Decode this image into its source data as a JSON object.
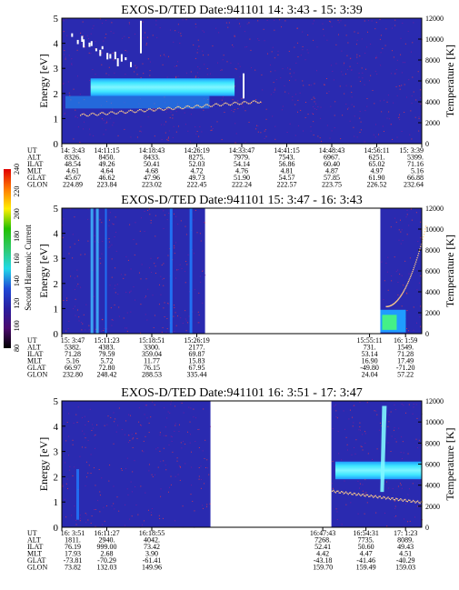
{
  "colorbar": {
    "label": "Second Harmonic Current",
    "ticks": [
      "80",
      "100",
      "120",
      "140",
      "160",
      "180",
      "200",
      "220",
      "240"
    ],
    "stops": [
      "#000000",
      "#4b0a6e",
      "#2a1ea0",
      "#1f49d6",
      "#22d9e8",
      "#2fc96a",
      "#22c000",
      "#ffee00",
      "#ff7a00",
      "#e00000"
    ]
  },
  "colors": {
    "background": "#2a2ab0",
    "band_cyan": "#3fe6ff",
    "band_light": "#7ff6ff",
    "band_mid": "#1f9cff",
    "noise": "#ff3a3a",
    "white": "#ffffff"
  },
  "chart_data": [
    {
      "type": "heatmap",
      "title": "EXOS-D/TED   Date:941101  14: 3:43 - 15: 3:39",
      "ylabel": "Energy [eV]",
      "y2label": "Temperature [K]",
      "ylim": [
        0,
        5
      ],
      "y2lim": [
        0,
        12000
      ],
      "yticks": [
        "0",
        "1",
        "2",
        "3",
        "4",
        "5"
      ],
      "y2ticks": [
        "0",
        "2000",
        "4000",
        "6000",
        "8000",
        "10000",
        "12000"
      ],
      "data_spans": [
        [
          0,
          1
        ]
      ],
      "band": {
        "x": [
          0.08,
          0.48
        ],
        "y": [
          1.9,
          2.6
        ]
      },
      "rows": [
        {
          "label": "UT",
          "values": [
            "14: 3:43",
            "14:11:15",
            "14:18:43",
            "14:26:19",
            "14:33:47",
            "14:41:15",
            "14:48:43",
            "14:56:11",
            "15: 3:39"
          ]
        },
        {
          "label": "ALT",
          "values": [
            "8326.",
            "8450.",
            "8433.",
            "8275.",
            "7979.",
            "7543.",
            "6967.",
            "6251.",
            "5399."
          ]
        },
        {
          "label": "ILAT",
          "values": [
            "48.54",
            "49.26",
            "50.41",
            "52.03",
            "54.14",
            "56.86",
            "60.40",
            "65.02",
            "71.16"
          ]
        },
        {
          "label": "MLT",
          "values": [
            "4.61",
            "4.64",
            "4.68",
            "4.72",
            "4.76",
            "4.81",
            "4.87",
            "4.97",
            "5.16"
          ]
        },
        {
          "label": "GLAT",
          "values": [
            "45.67",
            "46.62",
            "47.96",
            "49.73",
            "51.90",
            "54.57",
            "57.85",
            "61.90",
            "66.88"
          ]
        },
        {
          "label": "GLON",
          "values": [
            "224.89",
            "223.84",
            "223.02",
            "222.45",
            "222.24",
            "222.57",
            "223.75",
            "226.52",
            "232.64"
          ]
        }
      ],
      "row_positions": [
        0.0,
        0.125,
        0.25,
        0.375,
        0.5,
        0.625,
        0.75,
        0.875,
        1.0
      ]
    },
    {
      "type": "heatmap",
      "title": "EXOS-D/TED   Date:941101  15: 3:47 - 16: 3:43",
      "ylabel": "Energy [eV]",
      "y2label": "Temperature [K]",
      "ylim": [
        0,
        5
      ],
      "y2lim": [
        0,
        12000
      ],
      "yticks": [
        "0",
        "1",
        "2",
        "3",
        "4",
        "5"
      ],
      "y2ticks": [
        "0",
        "2000",
        "4000",
        "6000",
        "8000",
        "10000",
        "12000"
      ],
      "data_spans": [
        [
          0,
          0.398
        ],
        [
          0.885,
          1
        ]
      ],
      "band": null,
      "rows": [
        {
          "label": "UT",
          "values": [
            "15: 3:47",
            "15:11:23",
            "15:18:51",
            "15:26:19",
            "15:55:11",
            "16: 1:59"
          ]
        },
        {
          "label": "ALT",
          "values": [
            "5382.",
            "4383.",
            "3300.",
            "2177.",
            "731.",
            "1549."
          ]
        },
        {
          "label": "ILAT",
          "values": [
            "71.28",
            "79.59",
            "359.04",
            "69.87",
            "53.14",
            "71.28"
          ]
        },
        {
          "label": "MLT",
          "values": [
            "5.16",
            "5.72",
            "11.77",
            "15.83",
            "16.90",
            "17.49"
          ]
        },
        {
          "label": "GLAT",
          "values": [
            "66.97",
            "72.80",
            "76.15",
            "67.95",
            "-49.80",
            "-71.20"
          ]
        },
        {
          "label": "GLON",
          "values": [
            "232.80",
            "248.42",
            "288.53",
            "335.44",
            "24.04",
            "57.22"
          ]
        }
      ],
      "row_positions": [
        0.0,
        0.125,
        0.25,
        0.375,
        0.855,
        0.955
      ]
    },
    {
      "type": "heatmap",
      "title": "EXOS-D/TED   Date:941101  16: 3:51 - 17: 3:47",
      "ylabel": "Energy [eV]",
      "y2label": "Temperature [K]",
      "ylim": [
        0,
        5
      ],
      "y2lim": [
        0,
        12000
      ],
      "yticks": [
        "0",
        "1",
        "2",
        "3",
        "4",
        "5"
      ],
      "y2ticks": [
        "0",
        "2000",
        "4000",
        "6000",
        "8000",
        "10000",
        "12000"
      ],
      "data_spans": [
        [
          0,
          0.413
        ],
        [
          0.749,
          1
        ]
      ],
      "band": {
        "x": [
          0.76,
          1.0
        ],
        "y": [
          1.9,
          2.6
        ]
      },
      "rows": [
        {
          "label": "UT",
          "values": [
            "16: 3:51",
            "16:11:27",
            "16:18:55",
            "16:47:43",
            "16:54:31",
            "17: 1:23"
          ]
        },
        {
          "label": "ALT",
          "values": [
            "1811.",
            "2940.",
            "4042.",
            "7268.",
            "7735.",
            "8089."
          ]
        },
        {
          "label": "ILAT",
          "values": [
            "76.19",
            "999.00",
            "73.42",
            "52.41",
            "50.60",
            "49.43"
          ]
        },
        {
          "label": "MLT",
          "values": [
            "17.93",
            "2.68",
            "3.90",
            "4.42",
            "4.47",
            "4.51"
          ]
        },
        {
          "label": "GLAT",
          "values": [
            "-73.81",
            "-70.29",
            "-61.41",
            "-43.18",
            "-41.46",
            "-40.29"
          ]
        },
        {
          "label": "GLON",
          "values": [
            "73.82",
            "132.03",
            "149.96",
            "159.70",
            "159.49",
            "159.03"
          ]
        }
      ],
      "row_positions": [
        0.0,
        0.125,
        0.25,
        0.725,
        0.845,
        0.955
      ]
    }
  ]
}
